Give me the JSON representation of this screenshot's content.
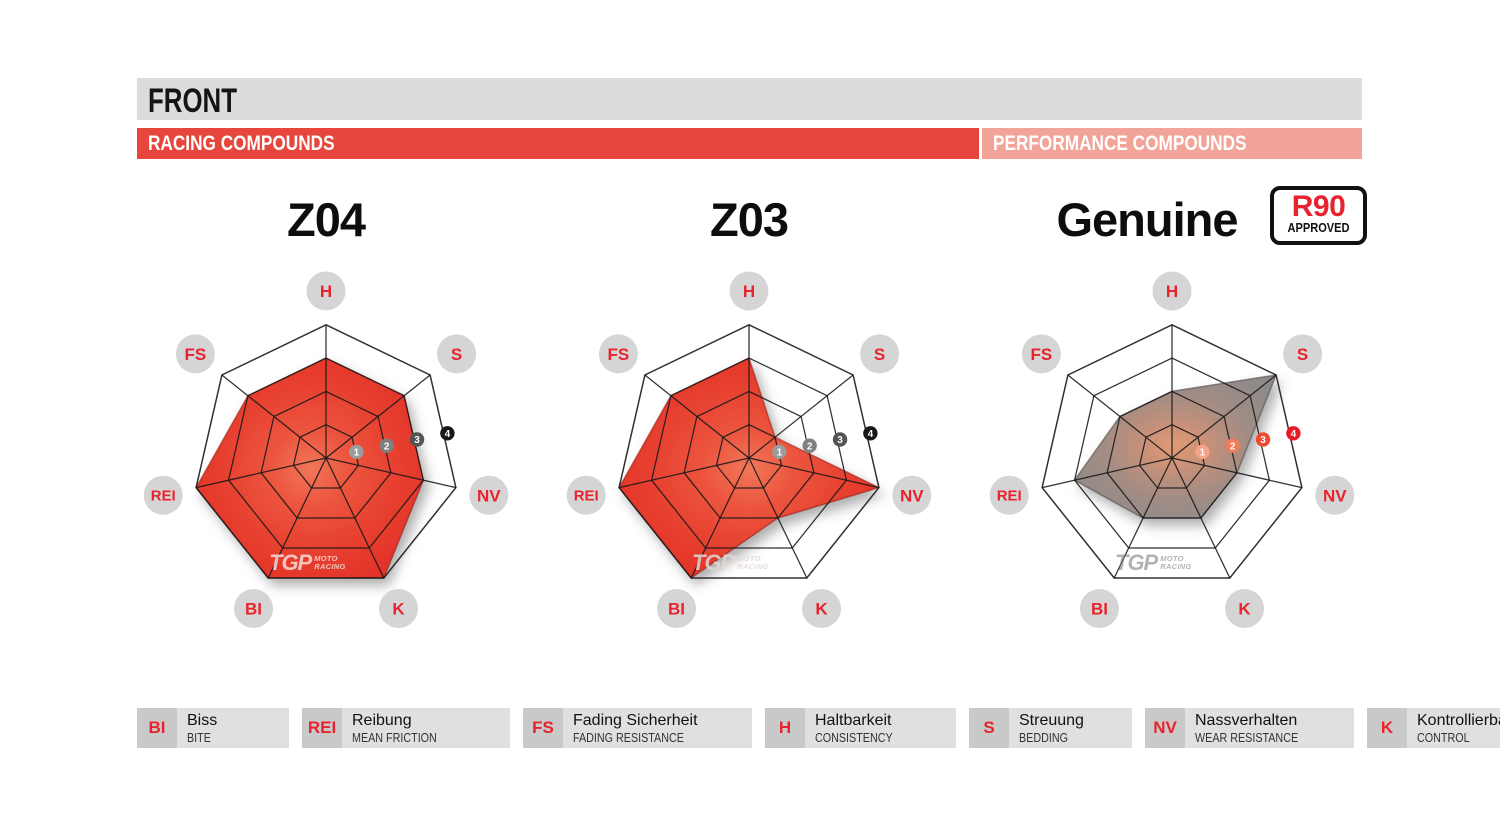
{
  "header": {
    "title": "FRONT",
    "racing_band": "RACING COMPOUNDS",
    "performance_band": "PERFORMANCE COMPOUNDS"
  },
  "r90_badge": {
    "line1": "R90",
    "line2": "APPROVED"
  },
  "watermark": {
    "tgp": "TGP",
    "moto": "MOTO",
    "racing": "RACING"
  },
  "chart_data": [
    {
      "type": "radar",
      "title": "Z04",
      "group": "RACING COMPOUNDS",
      "axes": [
        "H",
        "S",
        "NV",
        "K",
        "BI",
        "REI",
        "FS"
      ],
      "values": [
        3,
        3,
        3,
        4,
        4,
        4,
        3
      ],
      "scale": [
        "1",
        "2",
        "3",
        "4"
      ],
      "scale_max": 4,
      "grid": "heptagon, 4 rings, spokes, drawn over fill",
      "fill_stops": [
        "#f1775a",
        "#ec553e",
        "#e74030",
        "#e33127"
      ],
      "stroke": "rgba(150,25,15,0.55)",
      "badge_colors": [
        "#9c9c9c",
        "#7f7f7f",
        "#545454",
        "#171717"
      ],
      "watermark_color": "rgba(246,221,214,0.85)"
    },
    {
      "type": "radar",
      "title": "Z03",
      "group": "RACING COMPOUNDS",
      "axes": [
        "H",
        "S",
        "NV",
        "K",
        "BI",
        "REI",
        "FS"
      ],
      "values": [
        3,
        1,
        4,
        2,
        4,
        4,
        3
      ],
      "scale": [
        "1",
        "2",
        "3",
        "4"
      ],
      "scale_max": 4,
      "grid": "heptagon, 4 rings, spokes, drawn over fill",
      "fill_stops": [
        "#f1775a",
        "#ec553e",
        "#e74030",
        "#e33127"
      ],
      "stroke": "rgba(150,25,15,0.55)",
      "badge_colors": [
        "#9c9c9c",
        "#7f7f7f",
        "#545454",
        "#171717"
      ],
      "watermark_color": "rgba(225,215,212,0.85)"
    },
    {
      "type": "radar",
      "title": "Genuine",
      "group": "PERFORMANCE COMPOUNDS",
      "r90_approved": true,
      "axes": [
        "H",
        "S",
        "NV",
        "K",
        "BI",
        "REI",
        "FS"
      ],
      "values": [
        2,
        4,
        2,
        2,
        2,
        3,
        2
      ],
      "scale": [
        "1",
        "2",
        "3",
        "4"
      ],
      "scale_max": 4,
      "grid": "heptagon, 4 rings, spokes, drawn over fill",
      "fill_stops": [
        "#e29a72",
        "#c5907a",
        "#a08c85",
        "#8f8b89"
      ],
      "stroke": "rgba(95,90,88,0.7)",
      "badge_colors": [
        "#f5a288",
        "#f37a5a",
        "#ee4a31",
        "#e91a23"
      ],
      "watermark_color": "rgba(120,115,112,0.55)"
    }
  ],
  "legend": {
    "items": [
      {
        "abbr": "BI",
        "de": "Biss",
        "en": "BITE"
      },
      {
        "abbr": "REI",
        "de": "Reibung",
        "en": "MEAN FRICTION"
      },
      {
        "abbr": "FS",
        "de": "Fading Sicherheit",
        "en": "FADING RESISTANCE"
      },
      {
        "abbr": "H",
        "de": "Haltbarkeit",
        "en": "CONSISTENCY"
      },
      {
        "abbr": "S",
        "de": "Streuung",
        "en": "BEDDING"
      },
      {
        "abbr": "NV",
        "de": "Nassverhalten",
        "en": "WEAR RESISTANCE"
      },
      {
        "abbr": "K",
        "de": "Kontrollierbarkeit",
        "en": "CONTROL"
      }
    ],
    "min_widths": [
      88,
      144,
      165,
      127,
      99,
      145,
      0
    ]
  },
  "colors": {
    "header_bar": "#dcdcdc",
    "racing_band": "#e6463c",
    "performance_band": "#f2a499",
    "axis_label_text": "#e8232d",
    "axis_label_circle": "#d5d5d5",
    "grid_line": "#1a1a1a",
    "legend_abbr_box": "#c9c9c9",
    "legend_text_box": "#e0e0e0",
    "r90_red": "#e8232d"
  }
}
